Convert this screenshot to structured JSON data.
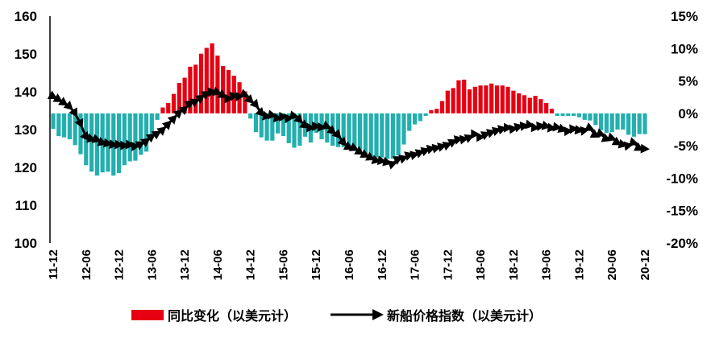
{
  "chart_data": {
    "type": "bar+line",
    "x_tick_labels": [
      "11-12",
      "12-06",
      "12-12",
      "13-06",
      "13-12",
      "14-06",
      "14-12",
      "15-06",
      "15-12",
      "16-06",
      "16-12",
      "17-06",
      "17-12",
      "18-06",
      "18-12",
      "19-06",
      "19-12",
      "20-06",
      "20-12"
    ],
    "x_start": "2011-12",
    "x_end": "2020-12",
    "x_frequency": "monthly",
    "left_axis": {
      "ylim": [
        100,
        160
      ],
      "ticks": [
        "100",
        "110",
        "120",
        "130",
        "140",
        "150",
        "160"
      ]
    },
    "right_axis": {
      "ylim": [
        -20,
        15
      ],
      "ticks": [
        "-20%",
        "-15%",
        "-10%",
        "-5%",
        "0%",
        "5%",
        "10%",
        "15%"
      ]
    },
    "grid": false,
    "legend_position": "bottom",
    "series": [
      {
        "name": "同比变化（以美元计）",
        "type": "bar",
        "axis": "right",
        "unit": "%",
        "color_positive": "#E60012",
        "color_negative": "#23AFAF",
        "values": [
          -2.4,
          -3.5,
          -3.7,
          -4.0,
          -4.9,
          -6.3,
          -8.0,
          -9.0,
          -9.6,
          -9.1,
          -9.0,
          -9.6,
          -9.2,
          -8.0,
          -7.4,
          -7.3,
          -6.4,
          -5.9,
          -3.3,
          -1.0,
          0.9,
          1.6,
          3.0,
          4.7,
          5.5,
          7.2,
          7.5,
          9.2,
          10.1,
          10.8,
          8.9,
          7.3,
          6.7,
          5.8,
          4.8,
          3.4,
          -0.8,
          -2.9,
          -3.7,
          -4.2,
          -4.2,
          -3.1,
          -3.5,
          -4.6,
          -5.3,
          -5.0,
          -3.6,
          -4.5,
          -3.0,
          -4.0,
          -4.5,
          -5.0,
          -5.2,
          -5.2,
          -5.3,
          -5.8,
          -6.0,
          -6.3,
          -6.6,
          -6.8,
          -6.8,
          -7.0,
          -7.0,
          -6.5,
          -4.8,
          -2.7,
          -1.7,
          -1.2,
          -0.4,
          0.5,
          0.7,
          1.9,
          3.5,
          3.9,
          5.1,
          5.2,
          3.7,
          4.1,
          4.3,
          4.3,
          4.6,
          4.3,
          4.3,
          4.1,
          3.5,
          3.1,
          2.8,
          2.4,
          2.7,
          2.2,
          1.6,
          0.7,
          -0.4,
          -0.4,
          -0.4,
          -0.4,
          -0.6,
          -1.0,
          -1.1,
          -1.8,
          -2.6,
          -3.0,
          -2.9,
          -2.5,
          -2.5,
          -3.3,
          -3.6,
          -3.2,
          -3.2
        ]
      },
      {
        "name": "新船价格指数（以美元计）",
        "type": "line",
        "axis": "left",
        "color": "#000000",
        "marker": "triangle",
        "values": [
          138.7,
          137.9,
          137.0,
          136.0,
          134.3,
          131.5,
          128.0,
          127.5,
          127.3,
          126.5,
          126.3,
          126.0,
          126.0,
          125.8,
          126.0,
          125.6,
          126.2,
          127.0,
          128.2,
          129.0,
          130.0,
          131.5,
          133.0,
          134.5,
          135.5,
          137.0,
          137.5,
          138.5,
          139.5,
          140.0,
          139.8,
          139.0,
          138.2,
          139.0,
          138.8,
          139.2,
          137.7,
          136.5,
          134.3,
          133.5,
          133.8,
          133.0,
          133.4,
          133.0,
          133.6,
          132.5,
          131.0,
          130.5,
          130.9,
          130.6,
          130.8,
          129.5,
          128.5,
          126.5,
          125.3,
          125.0,
          124.0,
          123.2,
          122.5,
          121.8,
          121.7,
          121.3,
          121.0,
          122.3,
          122.5,
          123.3,
          123.4,
          124.0,
          124.5,
          125.0,
          125.2,
          125.6,
          126.0,
          126.8,
          127.5,
          127.5,
          128.0,
          128.8,
          128.0,
          128.8,
          129.3,
          129.8,
          130.2,
          130.5,
          130.2,
          130.8,
          131.0,
          131.2,
          130.5,
          131.0,
          130.9,
          130.4,
          130.6,
          130.0,
          129.6,
          130.2,
          129.8,
          129.8,
          130.3,
          128.5,
          128.8,
          127.5,
          127.7,
          126.5,
          126.0,
          125.8,
          126.5,
          125.0,
          124.9
        ]
      }
    ]
  }
}
